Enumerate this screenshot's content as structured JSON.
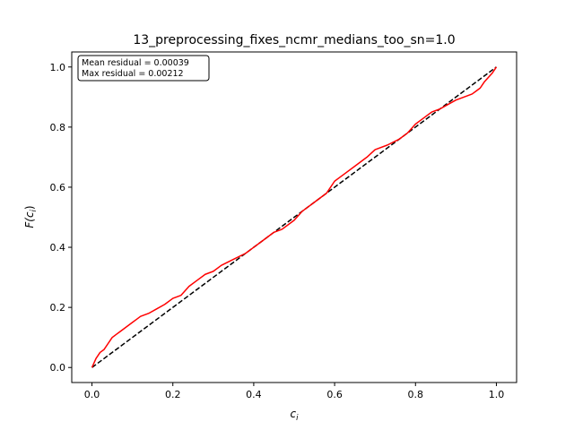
{
  "chart_data": {
    "type": "line",
    "title": "13_preprocessing_fixes_ncmr_medians_too_sn=1.0",
    "xlabel": "c_i",
    "ylabel": "F(c_i)",
    "xlim": [
      -0.05,
      1.05
    ],
    "ylim": [
      -0.05,
      1.05
    ],
    "xticks": [
      0.0,
      0.2,
      0.4,
      0.6,
      0.8,
      1.0
    ],
    "yticks": [
      0.0,
      0.2,
      0.4,
      0.6,
      0.8,
      1.0
    ],
    "xtick_labels": [
      "0.0",
      "0.2",
      "0.4",
      "0.6",
      "0.8",
      "1.0"
    ],
    "ytick_labels": [
      "0.0",
      "0.2",
      "0.4",
      "0.6",
      "0.8",
      "1.0"
    ],
    "grid": false,
    "annotation": {
      "lines": [
        "Mean residual = 0.00039",
        "Max residual = 0.00212"
      ],
      "placement": "top-left"
    },
    "series": [
      {
        "style": "solid",
        "color": "#ff0000",
        "x": [
          0.0,
          0.01,
          0.02,
          0.03,
          0.04,
          0.05,
          0.06,
          0.07,
          0.08,
          0.09,
          0.1,
          0.11,
          0.12,
          0.14,
          0.16,
          0.18,
          0.2,
          0.22,
          0.24,
          0.26,
          0.28,
          0.3,
          0.32,
          0.35,
          0.38,
          0.4,
          0.42,
          0.45,
          0.47,
          0.5,
          0.52,
          0.55,
          0.58,
          0.6,
          0.62,
          0.65,
          0.68,
          0.7,
          0.73,
          0.76,
          0.78,
          0.8,
          0.82,
          0.84,
          0.86,
          0.88,
          0.9,
          0.92,
          0.94,
          0.95,
          0.96,
          0.97,
          0.98,
          0.99,
          1.0
        ],
        "y": [
          0.0,
          0.03,
          0.05,
          0.06,
          0.08,
          0.1,
          0.11,
          0.12,
          0.13,
          0.14,
          0.15,
          0.16,
          0.17,
          0.18,
          0.195,
          0.21,
          0.23,
          0.24,
          0.27,
          0.29,
          0.31,
          0.32,
          0.34,
          0.36,
          0.38,
          0.4,
          0.42,
          0.45,
          0.46,
          0.49,
          0.52,
          0.55,
          0.58,
          0.62,
          0.64,
          0.67,
          0.7,
          0.725,
          0.74,
          0.76,
          0.78,
          0.81,
          0.83,
          0.85,
          0.86,
          0.875,
          0.89,
          0.9,
          0.91,
          0.92,
          0.93,
          0.95,
          0.965,
          0.98,
          1.0
        ]
      },
      {
        "style": "dashed",
        "color": "#000000",
        "x": [
          0.0,
          1.0
        ],
        "y": [
          0.0,
          1.0
        ]
      }
    ]
  }
}
